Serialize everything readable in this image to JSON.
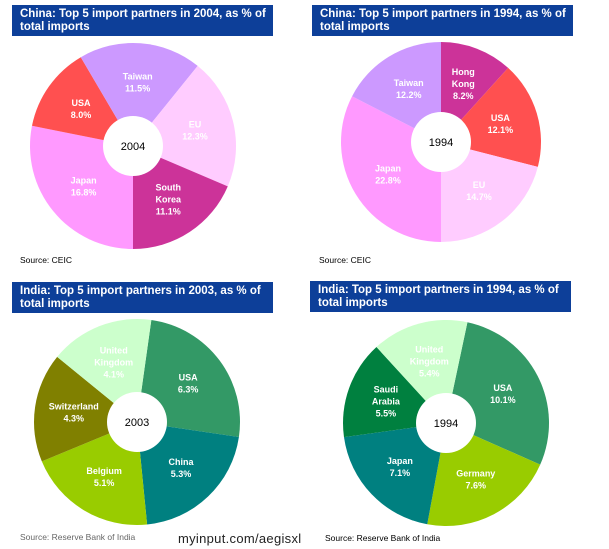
{
  "chart_data": [
    {
      "type": "pie",
      "title": "China: Top 5 import partners in 2004, as % of total imports",
      "center_label": "2004",
      "source": "Source: CEIC",
      "slices": [
        {
          "label": "Japan",
          "value": 16.8,
          "color": "#ff99ff"
        },
        {
          "label": "USA",
          "value": 8.0,
          "color": "#ff5050"
        },
        {
          "label": "Taiwan",
          "value": 11.5,
          "color": "#cc99ff"
        },
        {
          "label": "EU",
          "value": 12.3,
          "color": "#ffccff"
        },
        {
          "label": "South Korea",
          "value": 11.1,
          "color": "#cc3399"
        }
      ]
    },
    {
      "type": "pie",
      "title": "China: Top 5 import partners in 1994, as % of total imports",
      "center_label": "1994",
      "source": "Source: CEIC",
      "slices": [
        {
          "label": "Hong Kong",
          "value": 8.2,
          "color": "#cc3399"
        },
        {
          "label": "USA",
          "value": 12.1,
          "color": "#ff5050"
        },
        {
          "label": "EU",
          "value": 14.7,
          "color": "#ffccff"
        },
        {
          "label": "Japan",
          "value": 22.8,
          "color": "#ff99ff"
        },
        {
          "label": "Taiwan",
          "value": 12.2,
          "color": "#cc99ff"
        }
      ]
    },
    {
      "type": "pie",
      "title": "India: Top 5 import partners in 2003, as % of total imports",
      "center_label": "2003",
      "source": "Source: Reserve Bank of India",
      "slices": [
        {
          "label": "USA",
          "value": 6.3,
          "color": "#339966"
        },
        {
          "label": "China",
          "value": 5.3,
          "color": "#008080"
        },
        {
          "label": "Belgium",
          "value": 5.1,
          "color": "#99cc00"
        },
        {
          "label": "Switzerland",
          "value": 4.3,
          "color": "#808000"
        },
        {
          "label": "United Kingdom",
          "value": 4.1,
          "color": "#ccffcc"
        }
      ]
    },
    {
      "type": "pie",
      "title": "India: Top 5 import partners in 1994, as % of total imports",
      "center_label": "1994",
      "source": "Source: Reserve Bank of India",
      "slices": [
        {
          "label": "USA",
          "value": 10.1,
          "color": "#339966"
        },
        {
          "label": "Germany",
          "value": 7.6,
          "color": "#99cc00"
        },
        {
          "label": "Japan",
          "value": 7.1,
          "color": "#008080"
        },
        {
          "label": "Saudi Arabia",
          "value": 5.5,
          "color": "#00803f"
        },
        {
          "label": "United Kingdom",
          "value": 5.4,
          "color": "#ccffcc"
        }
      ]
    }
  ],
  "watermark": "myinput.com/aegisxl"
}
